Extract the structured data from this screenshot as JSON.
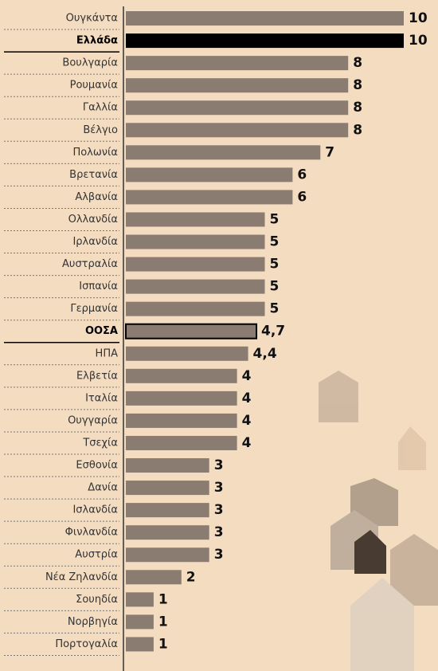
{
  "chart_data": {
    "type": "bar",
    "orientation": "horizontal",
    "categories": [
      "Ουγκάντα",
      "Ελλάδα",
      "Βουλγαρία",
      "Ρουμανία",
      "Γαλλία",
      "Βέλγιο",
      "Πολωνία",
      "Βρετανία",
      "Αλβανία",
      "Ολλανδία",
      "Ιρλανδία",
      "Αυστραλία",
      "Ισπανία",
      "Γερμανία",
      "ΟΟΣΑ",
      "ΗΠΑ",
      "Ελβετία",
      "Ιταλία",
      "Ουγγαρία",
      "Τσεχία",
      "Εσθονία",
      "Δανία",
      "Ισλανδία",
      "Φινλανδία",
      "Αυστρία",
      "Νέα Ζηλανδία",
      "Σουηδία",
      "Νορβηγία",
      "Πορτογαλία"
    ],
    "values": [
      10,
      10,
      8,
      8,
      8,
      8,
      7,
      6,
      6,
      5,
      5,
      5,
      5,
      5,
      4.7,
      4.4,
      4,
      4,
      4,
      4,
      3,
      3,
      3,
      3,
      3,
      2,
      1,
      1,
      1
    ],
    "value_labels": [
      "10",
      "10",
      "8",
      "8",
      "8",
      "8",
      "7",
      "6",
      "6",
      "5",
      "5",
      "5",
      "5",
      "5",
      "4,7",
      "4,4",
      "4",
      "4",
      "4",
      "4",
      "3",
      "3",
      "3",
      "3",
      "3",
      "2",
      "1",
      "1",
      "1"
    ],
    "colors": [
      "#8a7c70",
      "#000000",
      "#8a7c70",
      "#8a7c70",
      "#8a7c70",
      "#8a7c70",
      "#8a7c70",
      "#8a7c70",
      "#8a7c70",
      "#8a7c70",
      "#8a7c70",
      "#8a7c70",
      "#8a7c70",
      "#8a7c70",
      "#8a7c70",
      "#8a7c70",
      "#8a7c70",
      "#8a7c70",
      "#8a7c70",
      "#8a7c70",
      "#8a7c70",
      "#8a7c70",
      "#8a7c70",
      "#8a7c70",
      "#8a7c70",
      "#8a7c70",
      "#8a7c70",
      "#8a7c70",
      "#8a7c70"
    ],
    "edge_colors": [
      null,
      null,
      null,
      null,
      null,
      null,
      null,
      null,
      null,
      null,
      null,
      null,
      null,
      null,
      "#000000",
      null,
      null,
      null,
      null,
      null,
      null,
      null,
      null,
      null,
      null,
      null,
      null,
      null,
      null
    ],
    "xlim": [
      0,
      10
    ]
  }
}
